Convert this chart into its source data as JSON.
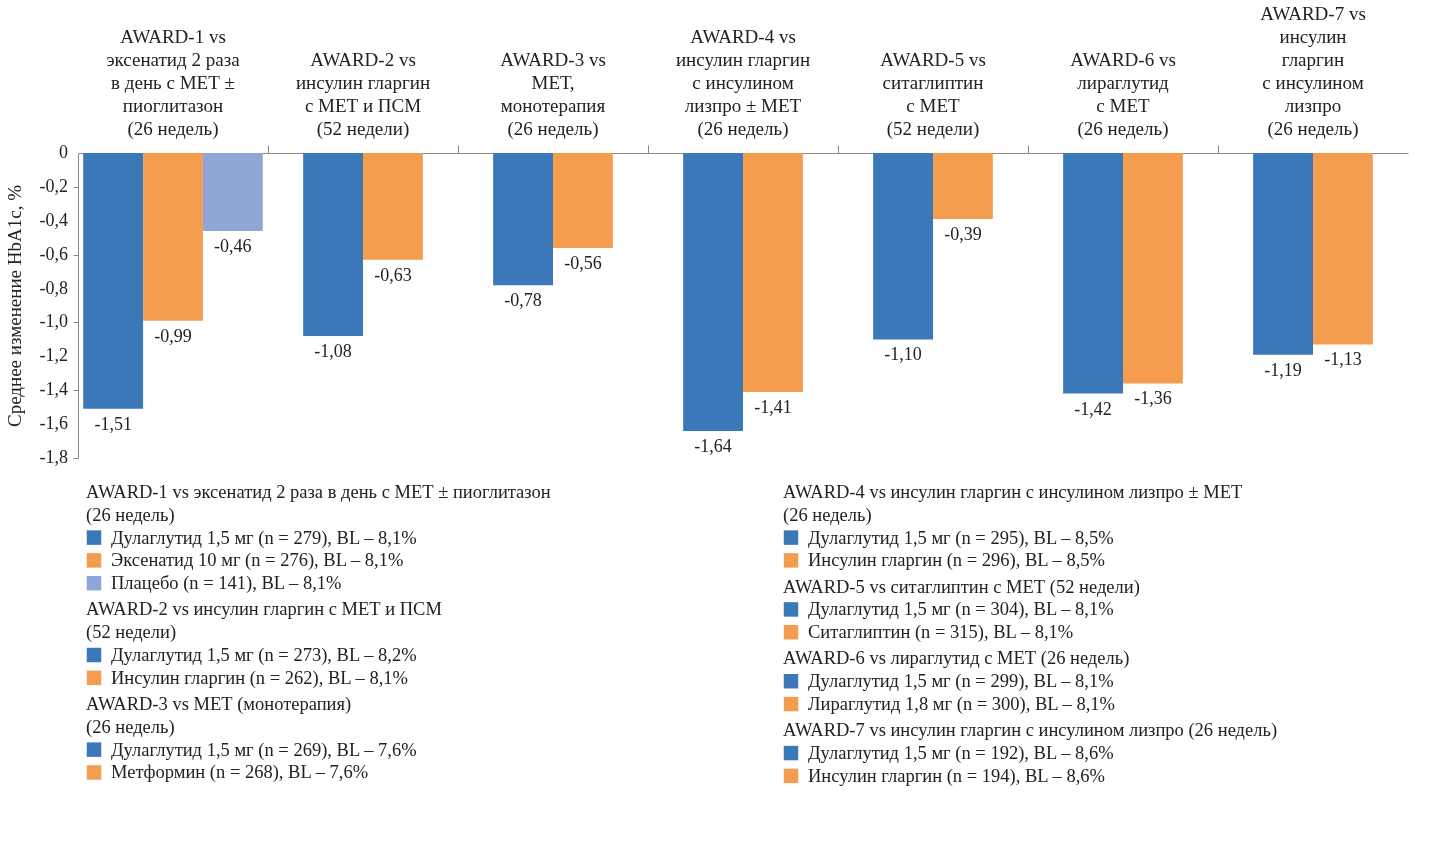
{
  "chart_data": {
    "type": "bar",
    "ylabel": "Среднее изменение HbA1c, %",
    "categories": [
      "AWARD-1 vs\nэксенатид 2 раза\nв день с МЕТ ±\nпиоглитазон\n(26 недель)",
      "AWARD-2 vs\nинсулин гларгин\nс МЕТ и ПСМ\n(52 недели)",
      "AWARD-3 vs\nМЕТ,\nмонотерапия\n(26 недель)",
      "AWARD-4 vs\nинсулин гларгин\nс инсулином\nлизпро ± МЕТ\n(26 недель)",
      "AWARD-5 vs\nситаглиптин\nс МЕТ\n(52 недели)",
      "AWARD-6 vs\nлираглутид\nс МЕТ\n(26 недель)",
      "AWARD-7 vs\nинсулин\nгларгин\nс инсулином\nлизпро\n(26 недель)"
    ],
    "ylim": [
      -1.8,
      0
    ],
    "yticks": [
      0,
      {
        "value": -0.2,
        "label": "-0,2"
      },
      {
        "value": -0.4,
        "label": "-0,4"
      },
      {
        "value": -0.6,
        "label": "-0,6"
      },
      {
        "value": -0.8,
        "label": "-0,8"
      },
      {
        "value": -1.0,
        "label": "-1,0"
      },
      {
        "value": -1.2,
        "label": "-1,2"
      },
      {
        "value": -1.4,
        "label": "-1,4"
      },
      {
        "value": -1.6,
        "label": "-1,6"
      },
      {
        "value": -1.8,
        "label": "-1,8"
      }
    ],
    "series": [
      {
        "name": "Дулаглутид 1,5 мг (n = 279), BL – 8,1%",
        "color": "#3a78b8",
        "values": [
          -1.51,
          null,
          null,
          null,
          null,
          null,
          null
        ],
        "value_labels": [
          "-1,51",
          null,
          null,
          null,
          null,
          null,
          null
        ]
      },
      {
        "name": "Эксенатид 10 мг (n = 276), BL – 8,1%",
        "color": "#f59d4f",
        "values": [
          -0.99,
          null,
          null,
          null,
          null,
          null,
          null
        ],
        "value_labels": [
          "-0,99",
          null,
          null,
          null,
          null,
          null,
          null
        ]
      },
      {
        "name": "Плацебо (n = 141), BL – 8,1%",
        "color": "#8fa7d6",
        "values": [
          -0.46,
          null,
          null,
          null,
          null,
          null,
          null
        ],
        "value_labels": [
          "-0,46",
          null,
          null,
          null,
          null,
          null,
          null
        ]
      },
      {
        "name": "Дулаглутид 1,5 мг (n = 273), BL – 8,2%",
        "color": "#3a78b8",
        "values": [
          null,
          -1.08,
          null,
          null,
          null,
          null,
          null
        ],
        "value_labels": [
          null,
          "-1,08",
          null,
          null,
          null,
          null,
          null
        ]
      },
      {
        "name": "Инсулин гларгин (n = 262), BL – 8,1%",
        "color": "#f59d4f",
        "values": [
          null,
          -0.63,
          null,
          null,
          null,
          null,
          null
        ],
        "value_labels": [
          null,
          "-0,63",
          null,
          null,
          null,
          null,
          null
        ]
      },
      {
        "name": "Дулаглутид 1,5 мг (n = 269), BL – 7,6%",
        "color": "#3a78b8",
        "values": [
          null,
          null,
          -0.78,
          null,
          null,
          null,
          null
        ],
        "value_labels": [
          null,
          null,
          "-0,78",
          null,
          null,
          null,
          null
        ]
      },
      {
        "name": "Метформин (n = 268), BL – 7,6%",
        "color": "#f59d4f",
        "values": [
          null,
          null,
          -0.56,
          null,
          null,
          null,
          null
        ],
        "value_labels": [
          null,
          null,
          "-0,56",
          null,
          null,
          null,
          null
        ]
      },
      {
        "name": "Дулаглутид 1,5 мг (n = 295), BL – 8,5%",
        "color": "#3a78b8",
        "values": [
          null,
          null,
          null,
          -1.64,
          null,
          null,
          null
        ],
        "value_labels": [
          null,
          null,
          null,
          "-1,64",
          null,
          null,
          null
        ]
      },
      {
        "name": "Инсулин гларгин (n = 296), BL – 8,5%",
        "color": "#f59d4f",
        "values": [
          null,
          null,
          null,
          -1.41,
          null,
          null,
          null
        ],
        "value_labels": [
          null,
          null,
          null,
          "-1,41",
          null,
          null,
          null
        ]
      },
      {
        "name": "Дулаглутид 1,5 мг (n = 304), BL – 8,1%",
        "color": "#3a78b8",
        "values": [
          null,
          null,
          null,
          null,
          -1.1,
          null,
          null
        ],
        "value_labels": [
          null,
          null,
          null,
          null,
          "-1,10",
          null,
          null
        ]
      },
      {
        "name": "Ситаглиптин (n = 315), BL – 8,1%",
        "color": "#f59d4f",
        "values": [
          null,
          null,
          null,
          null,
          -0.39,
          null,
          null
        ],
        "value_labels": [
          null,
          null,
          null,
          null,
          "-0,39",
          null,
          null
        ]
      },
      {
        "name": "Дулаглутид 1,5 мг (n = 299), BL – 8,1%",
        "color": "#3a78b8",
        "values": [
          null,
          null,
          null,
          null,
          null,
          -1.42,
          null
        ],
        "value_labels": [
          null,
          null,
          null,
          null,
          null,
          "-1,42",
          null
        ]
      },
      {
        "name": "Лираглутид 1,8 мг (n = 300), BL – 8,1%",
        "color": "#f59d4f",
        "values": [
          null,
          null,
          null,
          null,
          null,
          -1.36,
          null
        ],
        "value_labels": [
          null,
          null,
          null,
          null,
          null,
          "-1,36",
          null
        ]
      },
      {
        "name": "Дулаглутид 1,5 мг (n = 192), BL – 8,6%",
        "color": "#3a78b8",
        "values": [
          null,
          null,
          null,
          null,
          null,
          null,
          -1.19
        ],
        "value_labels": [
          null,
          null,
          null,
          null,
          null,
          null,
          "-1,19"
        ]
      },
      {
        "name": "Инсулин гларгин (n = 194), BL – 8,6%",
        "color": "#f59d4f",
        "values": [
          null,
          null,
          null,
          null,
          null,
          null,
          -1.13
        ],
        "value_labels": [
          null,
          null,
          null,
          null,
          null,
          null,
          "-1,13"
        ]
      }
    ],
    "annotations": [
      "AWARD-1 vs эксенатид 2 раза в день с МЕТ ± пиоглитазон\n(26 недель)",
      "AWARD-2 vs инсулин гларгин с МЕТ и ПСМ\n(52 недели)",
      "AWARD-3 vs МЕТ (монотерапия)\n(26 недель)",
      "AWARD-4 vs инсулин гларгин с инсулином лизпро ± МЕТ\n(26 недель)",
      "AWARD-5 vs ситаглиптин с МЕТ (52 недели)",
      "AWARD-6 vs лираглутид с МЕТ (26 недель)",
      "AWARD-7 vs инсулин гларгин с инсулином лизпро (26 недель)"
    ],
    "legend": "bottom"
  }
}
